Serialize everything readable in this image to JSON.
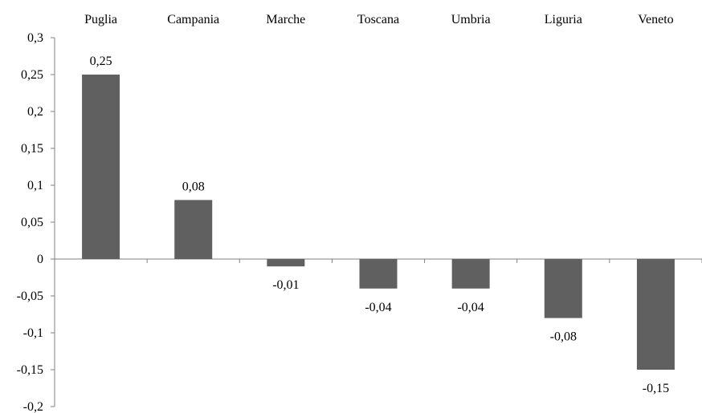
{
  "chart_data": {
    "type": "bar",
    "categories": [
      "Puglia",
      "Campania",
      "Marche",
      "Toscana",
      "Umbria",
      "Liguria",
      "Veneto"
    ],
    "values": [
      0.25,
      0.08,
      -0.01,
      -0.04,
      -0.04,
      -0.08,
      -0.15
    ],
    "value_labels": [
      "0,25",
      "0,08",
      "-0,01",
      "-0,04",
      "-0,04",
      "-0,08",
      "-0,15"
    ],
    "ylim": [
      -0.2,
      0.3
    ],
    "yticks": [
      0.3,
      0.25,
      0.2,
      0.15,
      0.1,
      0.05,
      0,
      -0.05,
      -0.1,
      -0.15,
      -0.2
    ],
    "ytick_labels": [
      "0,3",
      "0,25",
      "0,2",
      "0,15",
      "0,1",
      "0,05",
      "0",
      "-0,05",
      "-0,1",
      "-0,15",
      "-0,2"
    ],
    "category_labels_position": "top",
    "grid": false,
    "legend": "none",
    "title": "",
    "xlabel": "",
    "ylabel": "",
    "colors": {
      "bar": "#606060",
      "axis": "#808080",
      "text": "#000000"
    }
  }
}
